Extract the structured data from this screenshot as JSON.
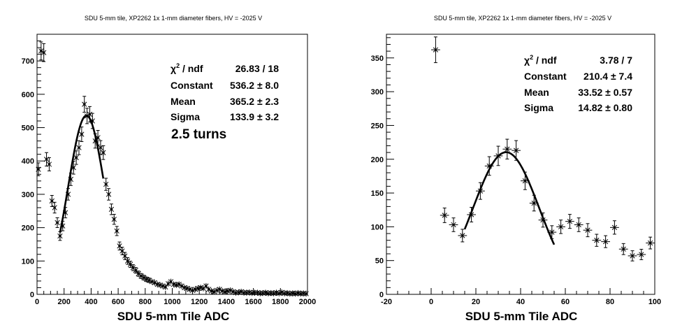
{
  "chart_data": [
    {
      "type": "scatter",
      "title": "SDU 5-mm tile, XP2262 1x 1-mm diameter fibers, HV = -2025 V",
      "xlabel": "SDU 5-mm Tile ADC",
      "ylabel": "",
      "xlim": [
        0,
        2000
      ],
      "ylim": [
        0,
        780
      ],
      "xticks": [
        0,
        200,
        400,
        600,
        800,
        1000,
        1200,
        1400,
        1600,
        1800,
        2000
      ],
      "yticks": [
        0,
        100,
        200,
        300,
        400,
        500,
        600,
        700
      ],
      "bin_width": 20,
      "series": [
        {
          "points": [
            [
              10,
              375
            ],
            [
              30,
              730
            ],
            [
              50,
              725
            ],
            [
              70,
              405
            ],
            [
              90,
              390
            ],
            [
              110,
              280
            ],
            [
              130,
              260
            ],
            [
              150,
              215
            ],
            [
              170,
              175
            ],
            [
              190,
              205
            ],
            [
              210,
              245
            ],
            [
              230,
              300
            ],
            [
              250,
              345
            ],
            [
              270,
              380
            ],
            [
              290,
              410
            ],
            [
              310,
              440
            ],
            [
              330,
              480
            ],
            [
              350,
              570
            ],
            [
              370,
              535
            ],
            [
              390,
              540
            ],
            [
              410,
              520
            ],
            [
              430,
              460
            ],
            [
              450,
              470
            ],
            [
              470,
              440
            ],
            [
              490,
              425
            ],
            [
              510,
              330
            ],
            [
              530,
              300
            ],
            [
              550,
              255
            ],
            [
              570,
              225
            ],
            [
              590,
              190
            ],
            [
              610,
              145
            ],
            [
              630,
              130
            ],
            [
              650,
              115
            ],
            [
              670,
              100
            ],
            [
              690,
              90
            ],
            [
              710,
              80
            ],
            [
              730,
              72
            ],
            [
              750,
              62
            ],
            [
              770,
              55
            ],
            [
              790,
              50
            ],
            [
              810,
              45
            ],
            [
              830,
              42
            ],
            [
              850,
              38
            ],
            [
              870,
              35
            ],
            [
              890,
              30
            ],
            [
              910,
              28
            ],
            [
              930,
              25
            ],
            [
              950,
              22
            ],
            [
              970,
              32
            ],
            [
              990,
              38
            ],
            [
              1010,
              30
            ],
            [
              1030,
              28
            ],
            [
              1050,
              30
            ],
            [
              1070,
              25
            ],
            [
              1090,
              20
            ],
            [
              1110,
              18
            ],
            [
              1130,
              15
            ],
            [
              1150,
              12
            ],
            [
              1170,
              15
            ],
            [
              1190,
              18
            ],
            [
              1210,
              20
            ],
            [
              1230,
              18
            ],
            [
              1250,
              25
            ],
            [
              1270,
              15
            ],
            [
              1290,
              10
            ],
            [
              1310,
              8
            ],
            [
              1330,
              12
            ],
            [
              1350,
              15
            ],
            [
              1370,
              10
            ],
            [
              1390,
              8
            ],
            [
              1410,
              10
            ],
            [
              1430,
              12
            ],
            [
              1450,
              8
            ],
            [
              1470,
              5
            ],
            [
              1490,
              6
            ],
            [
              1510,
              8
            ],
            [
              1530,
              5
            ],
            [
              1550,
              5
            ],
            [
              1570,
              6
            ],
            [
              1590,
              4
            ],
            [
              1610,
              5
            ],
            [
              1630,
              5
            ],
            [
              1650,
              3
            ],
            [
              1670,
              4
            ],
            [
              1690,
              5
            ],
            [
              1710,
              3
            ],
            [
              1730,
              4
            ],
            [
              1750,
              3
            ],
            [
              1770,
              5
            ],
            [
              1790,
              3
            ],
            [
              1810,
              6
            ],
            [
              1830,
              3
            ],
            [
              1850,
              4
            ],
            [
              1870,
              2
            ],
            [
              1890,
              3
            ],
            [
              1910,
              2
            ],
            [
              1930,
              4
            ],
            [
              1950,
              2
            ],
            [
              1970,
              3
            ],
            [
              1990,
              2
            ]
          ]
        }
      ],
      "fit": {
        "type": "gaussian",
        "constant": 536.2,
        "mean": 365.2,
        "sigma": 133.9,
        "range": [
          170,
          490
        ]
      },
      "stats": [
        {
          "label_base": "χ",
          "label_sup": "2",
          "label_rest": " / ndf",
          "value": "26.83 / 18"
        },
        {
          "label": "Constant",
          "value": "536.2 ± 8.0"
        },
        {
          "label": "Mean",
          "value": "365.2 ± 2.3"
        },
        {
          "label": "Sigma",
          "value": "133.9 ± 3.2"
        }
      ],
      "annotation": "2.5 turns",
      "annotation_color": "#0000cc"
    },
    {
      "type": "scatter",
      "title": "SDU 5-mm tile, XP2262 1x 1-mm diameter fibers, HV = -2025 V",
      "xlabel": "SDU 5-mm Tile ADC",
      "ylabel": "",
      "xlim": [
        -20,
        100
      ],
      "ylim": [
        0,
        385
      ],
      "xticks": [
        -20,
        0,
        20,
        40,
        60,
        80,
        100
      ],
      "yticks": [
        0,
        50,
        100,
        150,
        200,
        250,
        300,
        350
      ],
      "bin_width": 4,
      "series": [
        {
          "points": [
            [
              2,
              362
            ],
            [
              6,
              117
            ],
            [
              10,
              103
            ],
            [
              14,
              87
            ],
            [
              18,
              118
            ],
            [
              22,
              153
            ],
            [
              26,
              190
            ],
            [
              30,
              205
            ],
            [
              34,
              215
            ],
            [
              38,
              213
            ],
            [
              42,
              168
            ],
            [
              46,
              135
            ],
            [
              50,
              110
            ],
            [
              54,
              92
            ],
            [
              58,
              100
            ],
            [
              62,
              108
            ],
            [
              66,
              103
            ],
            [
              70,
              95
            ],
            [
              74,
              80
            ],
            [
              78,
              78
            ],
            [
              82,
              99
            ],
            [
              86,
              67
            ],
            [
              90,
              57
            ],
            [
              94,
              59
            ],
            [
              98,
              76
            ]
          ]
        }
      ],
      "fit": {
        "type": "gaussian",
        "constant": 210.4,
        "mean": 33.52,
        "sigma": 14.82,
        "range": [
          15,
          55
        ]
      },
      "stats": [
        {
          "label_base": "χ",
          "label_sup": "2",
          "label_rest": " / ndf",
          "value": "3.78 / 7"
        },
        {
          "label": "Constant",
          "value": "210.4 ± 7.4"
        },
        {
          "label": "Mean",
          "value": "33.52 ± 0.57"
        },
        {
          "label": "Sigma",
          "value": "14.82 ± 0.80"
        }
      ]
    }
  ]
}
